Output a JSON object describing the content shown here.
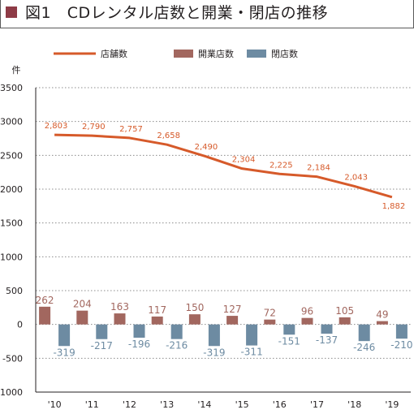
{
  "figure": {
    "title_prefix": "図1",
    "title": "CDレンタル店数と開業・閉店の推移"
  },
  "chart_data": {
    "type": "bar",
    "ylabel": "件",
    "ylim": [
      -1000,
      3500
    ],
    "yticks": [
      3500,
      3000,
      2500,
      2000,
      1500,
      1000,
      500,
      0,
      -500,
      -1000
    ],
    "categories": [
      "'10",
      "'11",
      "'12",
      "'13",
      "'14",
      "'15",
      "'16",
      "'17",
      "'18",
      "'19"
    ],
    "series": [
      {
        "name": "店舗数",
        "kind": "line",
        "color": "#d65a2a",
        "values": [
          2803,
          2790,
          2757,
          2658,
          2490,
          2304,
          2225,
          2184,
          2043,
          1882
        ],
        "labels": [
          "2,803",
          "2,790",
          "2,757",
          "2,658",
          "2,490",
          "2,304",
          "2,225",
          "2,184",
          "2,043",
          "1,882"
        ]
      },
      {
        "name": "開業店数",
        "kind": "bar",
        "color": "#a2675f",
        "values": [
          262,
          204,
          163,
          117,
          150,
          127,
          72,
          96,
          105,
          49
        ],
        "labels": [
          "262",
          "204",
          "163",
          "117",
          "150",
          "127",
          "72",
          "96",
          "105",
          "49"
        ]
      },
      {
        "name": "閉店数",
        "kind": "bar",
        "color": "#6d8ba2",
        "values": [
          -319,
          -217,
          -196,
          -216,
          -319,
          -311,
          -151,
          -137,
          -246,
          -210
        ],
        "labels": [
          "-319",
          "-217",
          "-196",
          "-216",
          "-319",
          "-311",
          "-151",
          "-137",
          "-246",
          "-210"
        ]
      }
    ],
    "legend": "top",
    "grid": "dotted horizontal"
  }
}
